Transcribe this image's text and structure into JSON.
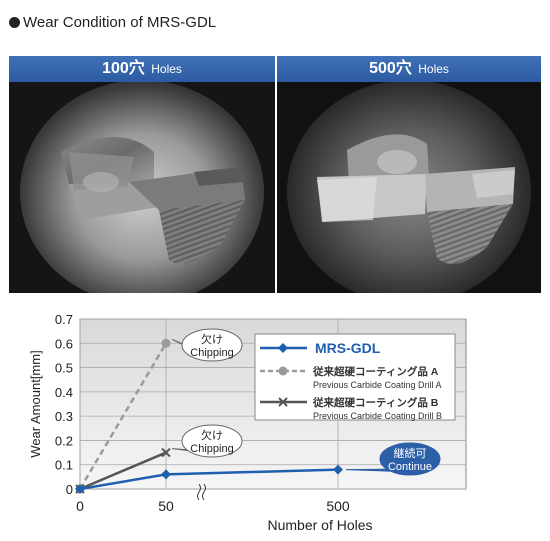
{
  "heading": {
    "text": "Wear Condition of MRS-GDL"
  },
  "photos": [
    {
      "count": "100穴",
      "unit": "Holes"
    },
    {
      "count": "500穴",
      "unit": "Holes"
    }
  ],
  "chart_data": {
    "type": "line",
    "xlabel": "Number of Holes",
    "ylabel": "Wear Amount[mm]",
    "x_tick_labels": [
      "0",
      "50",
      "500"
    ],
    "x_axis_break": true,
    "y_ticks": [
      "0",
      "0.1",
      "0.2",
      "0.3",
      "0.4",
      "0.5",
      "0.6",
      "0.7"
    ],
    "ylim": [
      0,
      0.7
    ],
    "grid": true,
    "legend_position": "top-right",
    "series": [
      {
        "name": "MRS-GDL",
        "name_sub": "",
        "color": "#1f5fb0",
        "marker": "diamond",
        "dashed": false,
        "points": [
          {
            "x": 0,
            "y": 0
          },
          {
            "x": 50,
            "y": 0.06
          },
          {
            "x": 500,
            "y": 0.08
          }
        ]
      },
      {
        "name": "従来超硬コーティング品 A",
        "name_sub": "Previous Carbide Coating Drill A",
        "color": "#9a9a9a",
        "marker": "circle",
        "dashed": true,
        "points": [
          {
            "x": 0,
            "y": 0
          },
          {
            "x": 50,
            "y": 0.6
          }
        ]
      },
      {
        "name": "従来超硬コーティング品 B",
        "name_sub": "Previous Carbide Coating Drill B",
        "color": "#555555",
        "marker": "x",
        "dashed": false,
        "points": [
          {
            "x": 0,
            "y": 0
          },
          {
            "x": 50,
            "y": 0.15
          }
        ]
      }
    ],
    "annotations": [
      {
        "line1": "欠け",
        "line2": "Chipping",
        "target_series": 1,
        "style": "bubble"
      },
      {
        "line1": "欠け",
        "line2": "Chipping",
        "target_series": 2,
        "style": "bubble"
      },
      {
        "line1": "継続可",
        "line2": "Continue",
        "target_series": 0,
        "style": "blue-bubble"
      }
    ]
  }
}
